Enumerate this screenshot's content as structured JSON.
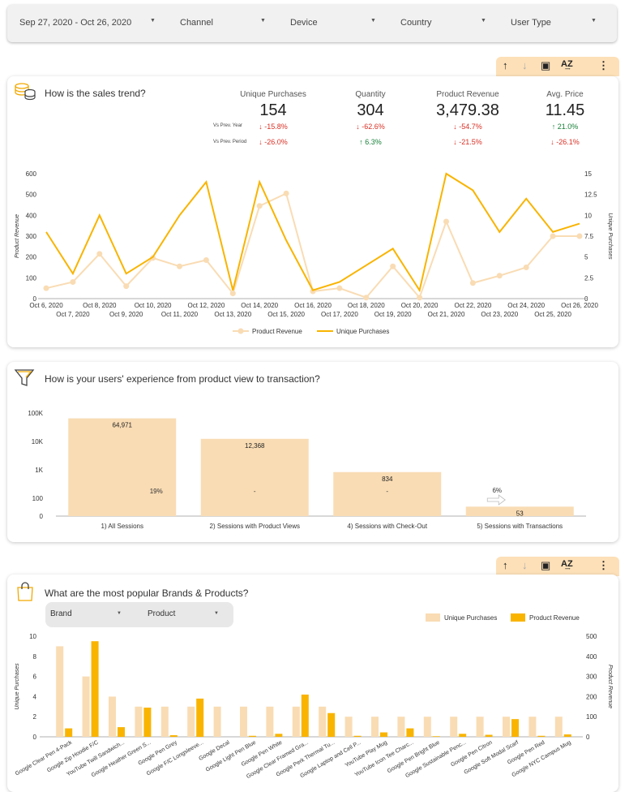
{
  "filters": [
    {
      "label": "Sep 27, 2020 - Oct 26, 2020"
    },
    {
      "label": "Channel"
    },
    {
      "label": "Device"
    },
    {
      "label": "Country"
    },
    {
      "label": "User Type"
    }
  ],
  "toolbar": {
    "sort_asc": "↑",
    "sort_desc": "↓",
    "chart": "▣",
    "az": "A͢Z",
    "more": "⋮"
  },
  "colors": {
    "accent": "#f9b400",
    "light": "#f9dcb4"
  },
  "sales": {
    "title": "How is the sales trend?",
    "vs_year_label": "Vs Prev. Year",
    "vs_period_label": "Vs Prev. Period",
    "kpis": [
      {
        "label": "Unique Purchases",
        "value": "154",
        "vs_year": "-15.8%",
        "vs_year_dir": "down",
        "vs_period": "-26.0%",
        "vs_period_dir": "down"
      },
      {
        "label": "Quantity",
        "value": "304",
        "vs_year": "-62.6%",
        "vs_year_dir": "down",
        "vs_period": "6.3%",
        "vs_period_dir": "up"
      },
      {
        "label": "Product Revenue",
        "value": "3,479.38",
        "vs_year": "-54.7%",
        "vs_year_dir": "down",
        "vs_period": "-21.5%",
        "vs_period_dir": "down"
      },
      {
        "label": "Avg. Price",
        "value": "11.45",
        "vs_year": "21.0%",
        "vs_year_dir": "up",
        "vs_period": "-26.1%",
        "vs_period_dir": "down"
      }
    ]
  },
  "funnel": {
    "title": "How is your users' experience from product view to transaction?"
  },
  "brands": {
    "title": "What are the most popular Brands & Products?",
    "brand_dropdown": "Brand",
    "product_dropdown": "Product"
  },
  "chart_data": [
    {
      "type": "line",
      "title": "",
      "ylabel": "Product Revenue",
      "y2label": "Unique Purchases",
      "ylim": [
        0,
        600
      ],
      "y2lim": [
        0,
        15
      ],
      "yticks": [
        "0",
        "100",
        "200",
        "300",
        "400",
        "500",
        "600"
      ],
      "y2ticks": [
        "0",
        "2.5",
        "5",
        "7.5",
        "10",
        "12.5",
        "15"
      ],
      "categories": [
        "Oct 6, 2020",
        "Oct 7, 2020",
        "Oct 8, 2020",
        "Oct 9, 2020",
        "Oct 10, 2020",
        "Oct 11, 2020",
        "Oct 12, 2020",
        "Oct 13, 2020",
        "Oct 14, 2020",
        "Oct 15, 2020",
        "Oct 16, 2020",
        "Oct 17, 2020",
        "Oct 18, 2020",
        "Oct 19, 2020",
        "Oct 20, 2020",
        "Oct 21, 2020",
        "Oct 22, 2020",
        "Oct 23, 2020",
        "Oct 24, 2020",
        "Oct 25, 2020",
        "Oct 26, 2020"
      ],
      "series": [
        {
          "name": "Product Revenue",
          "axis": "left",
          "values": [
            50,
            80,
            215,
            60,
            195,
            155,
            185,
            25,
            445,
            505,
            35,
            50,
            5,
            155,
            5,
            370,
            75,
            110,
            150,
            300,
            300
          ]
        },
        {
          "name": "Unique Purchases",
          "axis": "right",
          "values": [
            8,
            3,
            10,
            3,
            5,
            10,
            14,
            1,
            14,
            7,
            1,
            2,
            4,
            6,
            1,
            15,
            13,
            8,
            12,
            8,
            9
          ]
        }
      ],
      "legend": [
        "Product Revenue",
        "Unique Purchases"
      ]
    },
    {
      "type": "bar",
      "title": "",
      "yscale": "log",
      "yticks": [
        "0",
        "100",
        "1K",
        "10K",
        "100K"
      ],
      "categories": [
        "1) All Sessions",
        "2) Sessions with Product Views",
        "4) Sessions with Check-Out",
        "5) Sessions with Transactions"
      ],
      "values": [
        64971,
        12368,
        834,
        53
      ],
      "value_labels": [
        "64,971",
        "12,368",
        "834",
        "53"
      ],
      "rates": [
        "19%",
        "-",
        "-",
        "6%"
      ]
    },
    {
      "type": "bar",
      "title": "",
      "ylabel": "Unique Purchases",
      "y2label": "Product Revenue",
      "ylim": [
        0,
        10
      ],
      "y2lim": [
        0,
        500
      ],
      "yticks": [
        "0",
        "2",
        "4",
        "6",
        "8",
        "10"
      ],
      "y2ticks": [
        "0",
        "100",
        "200",
        "300",
        "400",
        "500"
      ],
      "categories": [
        "Google Clear Pen 4-Pack",
        "Google Zip Hoodie F/C",
        "YouTube Twill Sandwich...",
        "Google Heather Green S...",
        "Google Pen Grey",
        "Google F/C Longsleeve...",
        "Google Decal",
        "Google Light Pen Blue",
        "Google Pen White",
        "Google Clear Framed Gra...",
        "Google Perk Thermal Tu...",
        "Google Laptop and Cell P...",
        "YouTube Play Mug",
        "YouTube Icon Tee Charc...",
        "Google Pen Bright Blue",
        "Google Sustainable Penc...",
        "Google Pen Citron",
        "Google Soft Modal Scarf",
        "Google Pen Red",
        "Google NYC Campus Mug"
      ],
      "series": [
        {
          "name": "Unique Purchases",
          "axis": "left",
          "values": [
            9,
            6,
            4,
            3,
            3,
            3,
            3,
            3,
            3,
            3,
            3,
            2,
            2,
            2,
            2,
            2,
            2,
            2,
            2,
            2
          ]
        },
        {
          "name": "Product Revenue",
          "axis": "right",
          "values": [
            42,
            475,
            48,
            145,
            8,
            190,
            0,
            5,
            15,
            210,
            118,
            5,
            22,
            42,
            3,
            15,
            10,
            88,
            5,
            12
          ]
        }
      ],
      "legend": [
        "Unique Purchases",
        "Product Revenue"
      ]
    }
  ]
}
